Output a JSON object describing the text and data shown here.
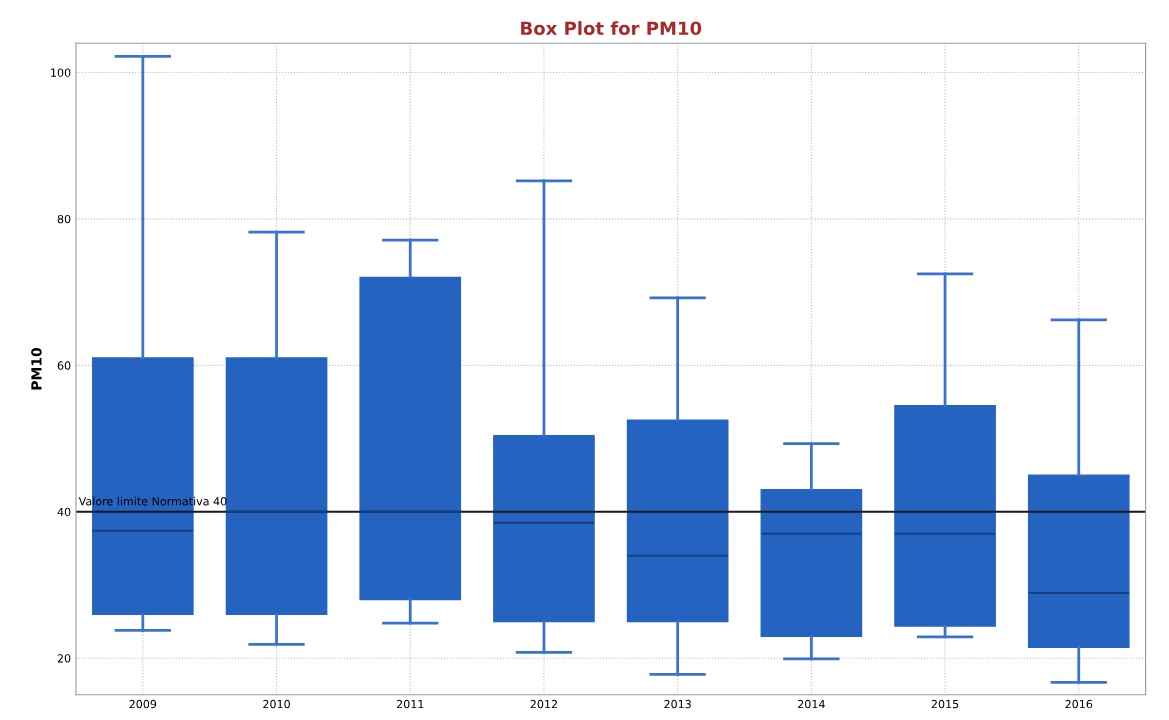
{
  "chart_data": {
    "type": "box",
    "title": "Box Plot for PM10",
    "ylabel": "PM10",
    "categories": [
      "2009",
      "2010",
      "2011",
      "2012",
      "2013",
      "2014",
      "2015",
      "2016"
    ],
    "series": [
      {
        "color": "#2563c0",
        "boxes": [
          {
            "low": 23.8,
            "q1": 26,
            "median": 37.4,
            "q3": 61,
            "high": 102.2
          },
          {
            "low": 21.9,
            "q1": 26,
            "median": 40,
            "q3": 61,
            "high": 78.2
          },
          {
            "low": 24.8,
            "q1": 28,
            "median": 40,
            "q3": 72,
            "high": 77.1
          },
          {
            "low": 20.8,
            "q1": 25,
            "median": 38.5,
            "q3": 50.4,
            "high": 85.2
          },
          {
            "low": 17.8,
            "q1": 25,
            "median": 34,
            "q3": 52.5,
            "high": 69.2
          },
          {
            "low": 19.9,
            "q1": 23,
            "median": 37,
            "q3": 43,
            "high": 49.3
          },
          {
            "low": 22.9,
            "q1": 24.4,
            "median": 37,
            "q3": 54.5,
            "high": 72.5
          },
          {
            "low": 16.7,
            "q1": 21.5,
            "median": 28.9,
            "q3": 45,
            "high": 66.2
          }
        ]
      }
    ],
    "ylim": [
      15,
      104
    ],
    "yticks": [
      20,
      40,
      60,
      80,
      100
    ],
    "ref_lines": [
      {
        "axis": "y",
        "value": 40,
        "label": "Valore limite Normativa 40",
        "color": "#1a1a1a",
        "line_style": "solid"
      }
    ],
    "grid": true
  }
}
